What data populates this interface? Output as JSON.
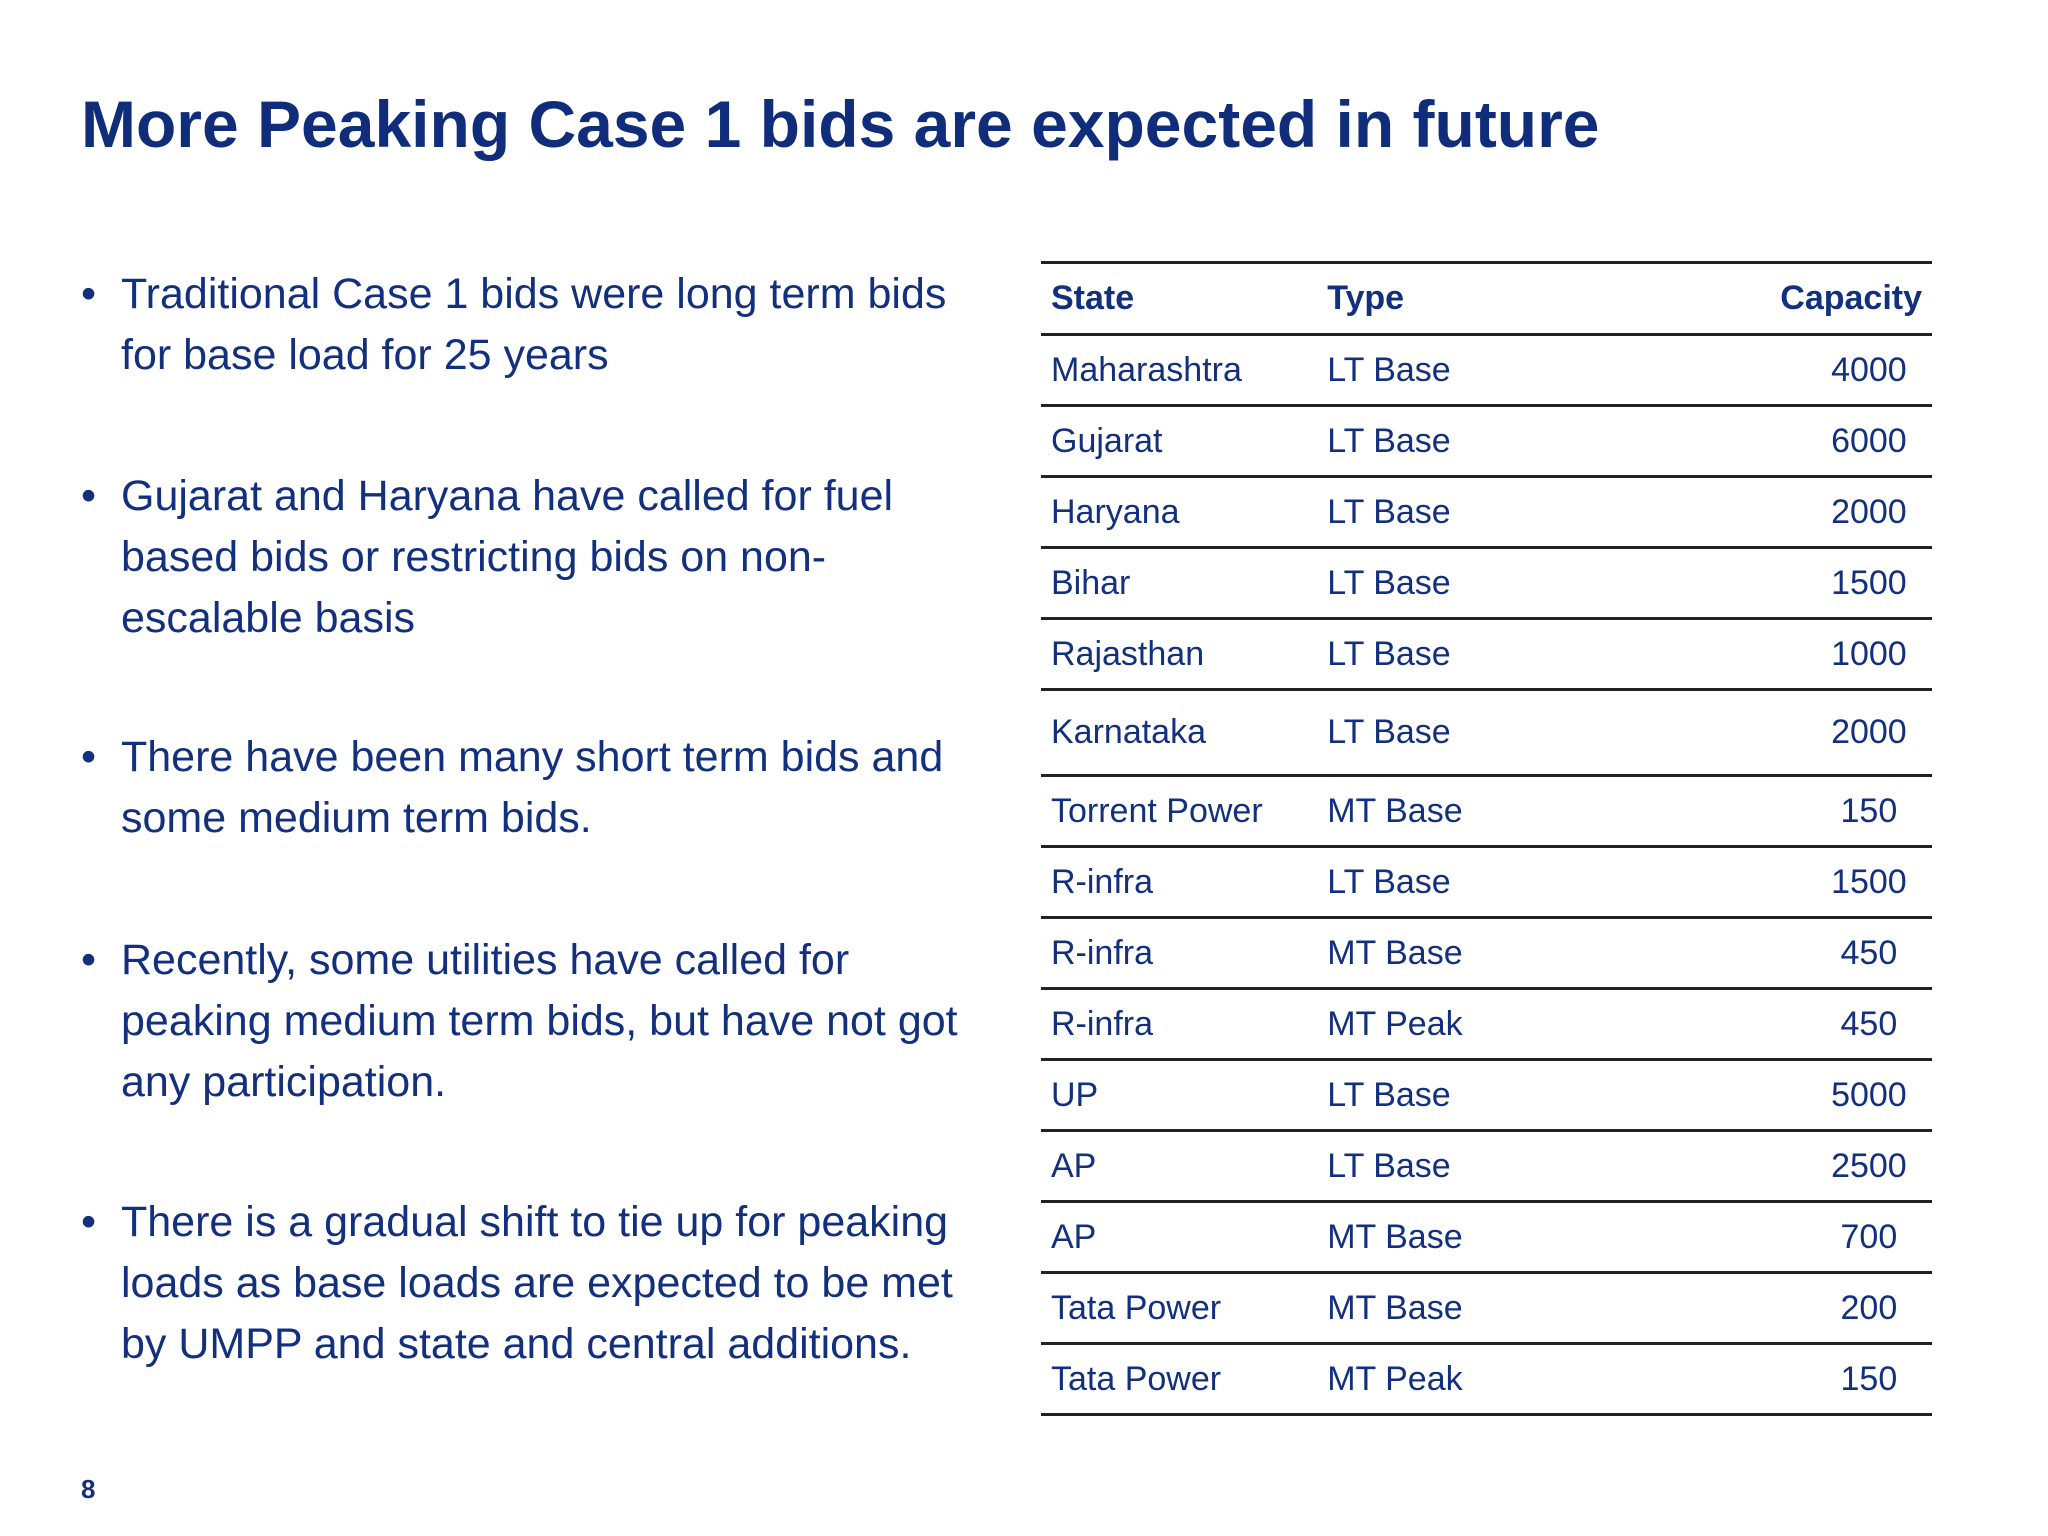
{
  "title": "More Peaking Case 1 bids are expected in future",
  "bullets": [
    "Traditional Case 1 bids were long term bids for base load for 25 years",
    "Gujarat and Haryana have called for fuel based bids or restricting bids on non-escalable basis",
    "There have been many short term bids and some medium term bids.",
    "Recently, some utilities have called for peaking medium term bids, but have not got any participation.",
    "There is a gradual shift to tie up for peaking loads as base loads are expected to be met by UMPP and state and central additions."
  ],
  "table": {
    "header": [
      "State",
      "Type",
      "Capacity"
    ],
    "rows": [
      [
        "Maharashtra",
        "LT Base",
        4000
      ],
      [
        "Gujarat",
        "LT Base",
        6000
      ],
      [
        "Haryana",
        "LT Base",
        2000
      ],
      [
        "Bihar",
        "LT Base",
        1500
      ],
      [
        "Rajasthan",
        "LT Base",
        1000
      ],
      [
        "Karnataka",
        "LT Base",
        2000
      ],
      [
        "Torrent Power",
        "MT Base",
        150
      ],
      [
        "R-infra",
        "LT Base",
        1500
      ],
      [
        "R-infra",
        "MT Base",
        450
      ],
      [
        "R-infra",
        "MT Peak",
        450
      ],
      [
        "UP",
        "LT Base",
        5000
      ],
      [
        "AP",
        "LT Base",
        2500
      ],
      [
        "AP",
        "MT Base",
        700
      ],
      [
        "Tata Power",
        "MT Base",
        200
      ],
      [
        "Tata Power",
        "MT Peak",
        150
      ]
    ]
  },
  "page_number": "8"
}
